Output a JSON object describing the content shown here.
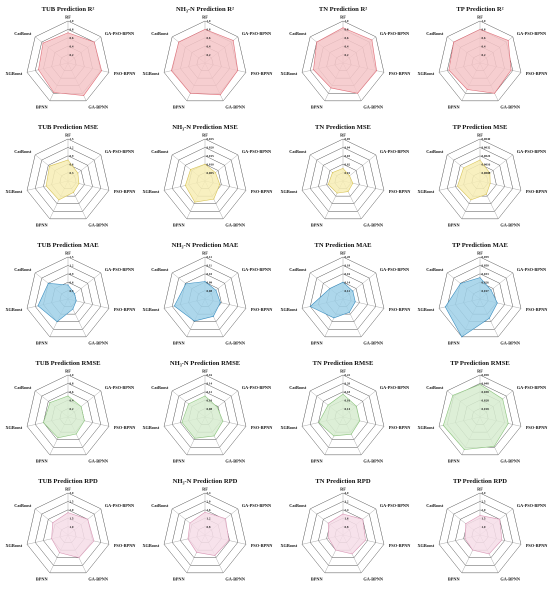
{
  "axes": [
    "RF",
    "GA-PSO-BPNN",
    "PSO-BPNN",
    "GA-BPNN",
    "BPNN",
    "XGBoost",
    "CatBoost"
  ],
  "row_colors": {
    "r2": {
      "fill": "#f4c6c8",
      "stroke": "#e0707a"
    },
    "mse": {
      "fill": "#f7edb5",
      "stroke": "#d8c45a"
    },
    "mae": {
      "fill": "#9fd0e8",
      "stroke": "#3d8fc0"
    },
    "rmse": {
      "fill": "#d7ecd0",
      "stroke": "#8cc47e"
    },
    "rpd": {
      "fill": "#f6dde8",
      "stroke": "#d998b6"
    }
  },
  "chart_data": [
    {
      "type": "radar",
      "row": "r2",
      "col": 0,
      "title": "TUB Prediction R²",
      "ticks": [
        "0.2",
        "0.4",
        "0.6",
        "0.8",
        "1.0"
      ],
      "max": 1.0,
      "values": [
        0.72,
        0.8,
        0.82,
        0.86,
        0.78,
        0.72,
        0.76
      ]
    },
    {
      "type": "radar",
      "row": "r2",
      "col": 1,
      "title": "NH₃-N Prediction R²",
      "ticks": [
        "0.2",
        "0.4",
        "0.6",
        "0.8",
        "1.0"
      ],
      "max": 1.0,
      "values": [
        0.8,
        0.86,
        0.8,
        0.84,
        0.8,
        0.82,
        0.8
      ]
    },
    {
      "type": "radar",
      "row": "r2",
      "col": 2,
      "title": "TN Prediction R²",
      "ticks": [
        "0.2",
        "0.4",
        "0.6",
        "0.8",
        "1.0"
      ],
      "max": 1.0,
      "values": [
        0.84,
        0.88,
        0.82,
        0.8,
        0.66,
        0.72,
        0.8
      ]
    },
    {
      "type": "radar",
      "row": "r2",
      "col": 3,
      "title": "TP Prediction R²",
      "ticks": [
        "0.2",
        "0.4",
        "0.6",
        "0.8",
        "1.0"
      ],
      "max": 1.0,
      "values": [
        0.8,
        0.86,
        0.76,
        0.8,
        0.7,
        0.76,
        0.8
      ]
    },
    {
      "type": "radar",
      "row": "mse",
      "col": 0,
      "title": "TUB Prediction MSE",
      "ticks": [
        "0.3",
        "0.6",
        "0.9",
        "1.2",
        "1.5"
      ],
      "max": 1.5,
      "values": [
        0.75,
        0.45,
        0.4,
        0.45,
        0.75,
        0.8,
        0.85
      ]
    },
    {
      "type": "radar",
      "row": "mse",
      "col": 1,
      "title": "NH₃-N Prediction MSE",
      "ticks": [
        "0.005",
        "0.010",
        "0.015",
        "0.020",
        "0.025"
      ],
      "max": 0.025,
      "values": [
        0.01,
        0.008,
        0.009,
        0.012,
        0.014,
        0.012,
        0.011
      ]
    },
    {
      "type": "radar",
      "row": "mse",
      "col": 2,
      "title": "TN Prediction MSE",
      "ticks": [
        "0.01",
        "0.02",
        "0.03",
        "0.04",
        "0.05"
      ],
      "max": 0.05,
      "values": [
        0.015,
        0.01,
        0.012,
        0.014,
        0.016,
        0.018,
        0.016
      ]
    },
    {
      "type": "radar",
      "row": "mse",
      "col": 3,
      "title": "TP Prediction MSE",
      "ticks": [
        "0.0008",
        "0.0016",
        "0.0024",
        "0.0032",
        "0.0040"
      ],
      "max": 0.004,
      "values": [
        0.002,
        0.0012,
        0.001,
        0.0014,
        0.002,
        0.0022,
        0.002
      ]
    },
    {
      "type": "radar",
      "row": "mae",
      "col": 0,
      "title": "TUB Prediction MAE",
      "ticks": [
        "0.3",
        "0.6",
        "0.9",
        "1.2",
        "1.5"
      ],
      "max": 1.5,
      "values": [
        0.5,
        0.3,
        0.3,
        0.4,
        0.9,
        1.1,
        0.9
      ]
    },
    {
      "type": "radar",
      "row": "mae",
      "col": 1,
      "title": "NH₃-N Prediction MAE",
      "ticks": [
        "0.08",
        "0.09",
        "0.10",
        "0.11",
        "0.12"
      ],
      "max": 0.12,
      "values": [
        0.05,
        0.04,
        0.045,
        0.055,
        0.07,
        0.09,
        0.07
      ]
    },
    {
      "type": "radar",
      "row": "mae",
      "col": 2,
      "title": "TN Prediction MAE",
      "ticks": [
        "0.12",
        "0.14",
        "0.16",
        "0.18",
        "0.20"
      ],
      "max": 0.2,
      "values": [
        0.08,
        0.06,
        0.06,
        0.07,
        0.1,
        0.16,
        0.08
      ]
    },
    {
      "type": "radar",
      "row": "mae",
      "col": 3,
      "title": "TP Prediction MAE",
      "ticks": [
        "0.017",
        "0.026",
        "0.033",
        "0.050",
        "0.059"
      ],
      "max": 0.059,
      "values": [
        0.03,
        0.02,
        0.025,
        0.03,
        0.059,
        0.05,
        0.035
      ]
    },
    {
      "type": "radar",
      "row": "rmse",
      "col": 0,
      "title": "TUB Prediction RMSE",
      "ticks": [
        "0.2",
        "0.4",
        "0.6",
        "0.8",
        "1.0"
      ],
      "max": 1.0,
      "values": [
        0.5,
        0.4,
        0.4,
        0.45,
        0.55,
        0.6,
        0.55
      ]
    },
    {
      "type": "radar",
      "row": "rmse",
      "col": 1,
      "title": "NH₃-N Prediction RMSE",
      "ticks": [
        "0.08",
        "0.10",
        "0.12",
        "0.14",
        "0.16"
      ],
      "max": 0.16,
      "values": [
        0.08,
        0.06,
        0.07,
        0.08,
        0.09,
        0.09,
        0.08
      ]
    },
    {
      "type": "radar",
      "row": "rmse",
      "col": 2,
      "title": "TN Prediction RMSE",
      "ticks": [
        "0.14",
        "0.16",
        "0.18",
        "0.20",
        "0.22"
      ],
      "max": 0.22,
      "values": [
        0.12,
        0.09,
        0.09,
        0.1,
        0.11,
        0.13,
        0.1
      ]
    },
    {
      "type": "radar",
      "row": "rmse",
      "col": 3,
      "title": "TP Prediction RMSE",
      "ticks": [
        "0.018",
        "0.028",
        "0.038",
        "0.048",
        "0.058"
      ],
      "max": 0.058,
      "values": [
        0.045,
        0.04,
        0.04,
        0.045,
        0.05,
        0.052,
        0.048
      ]
    },
    {
      "type": "radar",
      "row": "rpd",
      "col": 0,
      "title": "TUB Prediction RPD",
      "ticks": [
        "1.0",
        "1.5",
        "2.0",
        "2.5",
        "3.0"
      ],
      "max": 3.0,
      "values": [
        1.6,
        1.8,
        1.9,
        1.8,
        1.4,
        1.2,
        1.4
      ]
    },
    {
      "type": "radar",
      "row": "rpd",
      "col": 1,
      "title": "NH₃-N Prediction RPD",
      "ticks": [
        "0.8",
        "1.2",
        "1.6",
        "2.0",
        "2.4"
      ],
      "max": 2.4,
      "values": [
        1.3,
        1.5,
        1.4,
        1.3,
        1.1,
        1.0,
        1.1
      ]
    },
    {
      "type": "radar",
      "row": "rpd",
      "col": 2,
      "title": "TN Prediction RPD",
      "ticks": [
        "0.8",
        "1.6",
        "2.4",
        "3.2",
        "4.0"
      ],
      "max": 4.0,
      "values": [
        2.0,
        2.4,
        2.2,
        2.0,
        1.6,
        1.4,
        1.8
      ]
    },
    {
      "type": "radar",
      "row": "rpd",
      "col": 3,
      "title": "TP Prediction RPD",
      "ticks": [
        "1.0",
        "1.5",
        "2.0",
        "2.5",
        "3.0"
      ],
      "max": 3.0,
      "values": [
        1.4,
        1.8,
        1.6,
        1.5,
        1.2,
        1.1,
        1.3
      ]
    }
  ]
}
